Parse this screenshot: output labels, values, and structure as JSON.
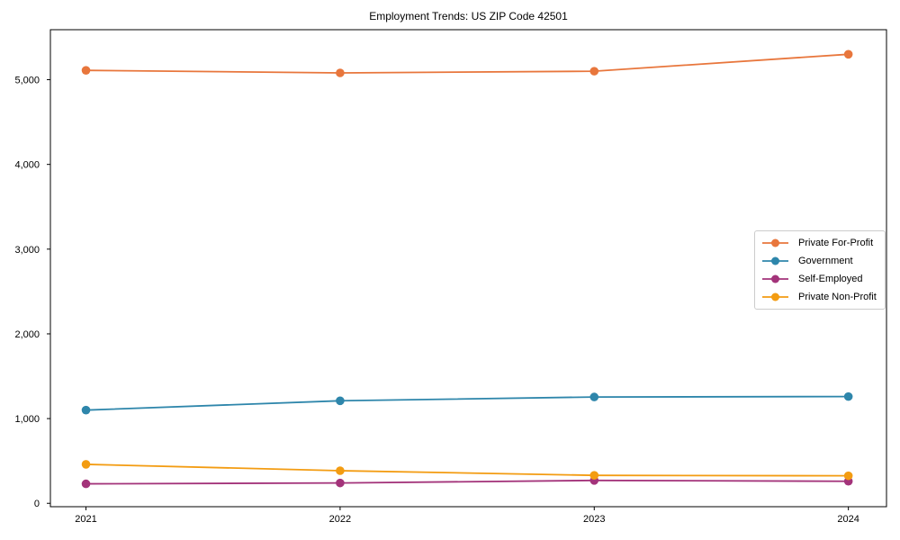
{
  "chart_data": {
    "type": "line",
    "title": "Employment Trends: US ZIP Code 42501",
    "xlabel": "",
    "ylabel": "",
    "x": [
      2021,
      2022,
      2023,
      2024
    ],
    "x_tick_labels": [
      "2021",
      "2022",
      "2023",
      "2024"
    ],
    "yticks": [
      0,
      1000,
      2000,
      3000,
      4000,
      5000
    ],
    "ytick_labels": [
      "0",
      "1,000",
      "2,000",
      "3,000",
      "4,000",
      "5,000"
    ],
    "xlim": [
      2020.86,
      2024.15
    ],
    "ylim": [
      -40,
      5590
    ],
    "grid": false,
    "legend_position": "center right",
    "series": [
      {
        "name": "Private For-Profit",
        "color": "#E8763C",
        "values": [
          5110,
          5080,
          5100,
          5300
        ]
      },
      {
        "name": "Government",
        "color": "#2E86AB",
        "values": [
          1100,
          1210,
          1255,
          1260
        ]
      },
      {
        "name": "Self-Employed",
        "color": "#A3337A",
        "values": [
          230,
          240,
          270,
          260
        ]
      },
      {
        "name": "Private Non-Profit",
        "color": "#F39C12",
        "values": [
          460,
          385,
          330,
          325
        ]
      }
    ]
  }
}
